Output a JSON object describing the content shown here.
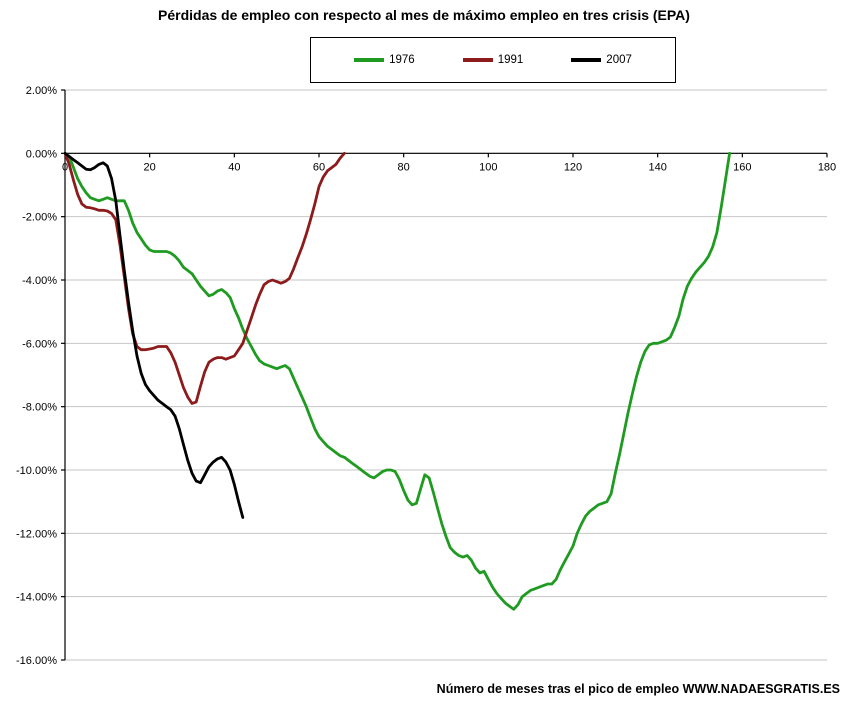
{
  "chart_data": {
    "type": "line",
    "title": "Pérdidas de empleo con respecto al mes de máximo empleo en tres crisis (EPA)",
    "xlabel": "Número de meses tras el pico de empleo WWW.NADAESGRATIS.ES",
    "ylabel": "",
    "xlim": [
      0,
      180
    ],
    "ylim": [
      -16,
      2
    ],
    "xticks": [
      0,
      20,
      40,
      60,
      80,
      100,
      120,
      140,
      160,
      180
    ],
    "yticks": [
      2,
      0,
      -2,
      -4,
      -6,
      -8,
      -10,
      -12,
      -14,
      -16
    ],
    "ytick_format": "0.00%",
    "grid": "horizontal",
    "gridline_color": "#c6c6c6",
    "axis_color": "#000000",
    "legend_position": "top-center",
    "series": [
      {
        "name": "1976",
        "color": "#1e9b20",
        "points": [
          [
            0,
            0
          ],
          [
            1,
            -0.1
          ],
          [
            2,
            -0.45
          ],
          [
            3,
            -0.8
          ],
          [
            4,
            -1.05
          ],
          [
            5,
            -1.25
          ],
          [
            6,
            -1.4
          ],
          [
            7,
            -1.45
          ],
          [
            8,
            -1.5
          ],
          [
            9,
            -1.45
          ],
          [
            10,
            -1.4
          ],
          [
            11,
            -1.45
          ],
          [
            12,
            -1.5
          ],
          [
            13,
            -1.5
          ],
          [
            14,
            -1.5
          ],
          [
            15,
            -1.8
          ],
          [
            16,
            -2.2
          ],
          [
            17,
            -2.5
          ],
          [
            18,
            -2.7
          ],
          [
            19,
            -2.9
          ],
          [
            20,
            -3.05
          ],
          [
            21,
            -3.1
          ],
          [
            22,
            -3.1
          ],
          [
            23,
            -3.1
          ],
          [
            24,
            -3.1
          ],
          [
            25,
            -3.15
          ],
          [
            26,
            -3.25
          ],
          [
            27,
            -3.4
          ],
          [
            28,
            -3.6
          ],
          [
            29,
            -3.7
          ],
          [
            30,
            -3.8
          ],
          [
            31,
            -4.0
          ],
          [
            32,
            -4.2
          ],
          [
            33,
            -4.35
          ],
          [
            34,
            -4.5
          ],
          [
            35,
            -4.45
          ],
          [
            36,
            -4.35
          ],
          [
            37,
            -4.3
          ],
          [
            38,
            -4.4
          ],
          [
            39,
            -4.55
          ],
          [
            40,
            -4.9
          ],
          [
            41,
            -5.2
          ],
          [
            42,
            -5.55
          ],
          [
            43,
            -5.85
          ],
          [
            44,
            -6.1
          ],
          [
            45,
            -6.35
          ],
          [
            46,
            -6.55
          ],
          [
            47,
            -6.65
          ],
          [
            48,
            -6.7
          ],
          [
            49,
            -6.75
          ],
          [
            50,
            -6.8
          ],
          [
            51,
            -6.75
          ],
          [
            52,
            -6.7
          ],
          [
            53,
            -6.8
          ],
          [
            54,
            -7.1
          ],
          [
            55,
            -7.4
          ],
          [
            56,
            -7.7
          ],
          [
            57,
            -8.0
          ],
          [
            58,
            -8.35
          ],
          [
            59,
            -8.7
          ],
          [
            60,
            -8.95
          ],
          [
            61,
            -9.1
          ],
          [
            62,
            -9.25
          ],
          [
            63,
            -9.35
          ],
          [
            64,
            -9.45
          ],
          [
            65,
            -9.55
          ],
          [
            66,
            -9.6
          ],
          [
            67,
            -9.7
          ],
          [
            68,
            -9.8
          ],
          [
            69,
            -9.9
          ],
          [
            70,
            -10.0
          ],
          [
            71,
            -10.1
          ],
          [
            72,
            -10.2
          ],
          [
            73,
            -10.25
          ],
          [
            74,
            -10.15
          ],
          [
            75,
            -10.05
          ],
          [
            76,
            -10.0
          ],
          [
            77,
            -10.0
          ],
          [
            78,
            -10.05
          ],
          [
            79,
            -10.3
          ],
          [
            80,
            -10.65
          ],
          [
            81,
            -10.95
          ],
          [
            82,
            -11.1
          ],
          [
            83,
            -11.05
          ],
          [
            84,
            -10.6
          ],
          [
            85,
            -10.15
          ],
          [
            86,
            -10.25
          ],
          [
            87,
            -10.7
          ],
          [
            88,
            -11.2
          ],
          [
            89,
            -11.7
          ],
          [
            90,
            -12.1
          ],
          [
            91,
            -12.45
          ],
          [
            92,
            -12.6
          ],
          [
            93,
            -12.7
          ],
          [
            94,
            -12.75
          ],
          [
            95,
            -12.7
          ],
          [
            96,
            -12.85
          ],
          [
            97,
            -13.1
          ],
          [
            98,
            -13.25
          ],
          [
            99,
            -13.2
          ],
          [
            100,
            -13.45
          ],
          [
            101,
            -13.7
          ],
          [
            102,
            -13.9
          ],
          [
            103,
            -14.05
          ],
          [
            104,
            -14.2
          ],
          [
            105,
            -14.3
          ],
          [
            106,
            -14.4
          ],
          [
            107,
            -14.25
          ],
          [
            108,
            -14.0
          ],
          [
            109,
            -13.9
          ],
          [
            110,
            -13.8
          ],
          [
            111,
            -13.75
          ],
          [
            112,
            -13.7
          ],
          [
            113,
            -13.65
          ],
          [
            114,
            -13.6
          ],
          [
            115,
            -13.6
          ],
          [
            116,
            -13.45
          ],
          [
            117,
            -13.15
          ],
          [
            118,
            -12.9
          ],
          [
            119,
            -12.65
          ],
          [
            120,
            -12.4
          ],
          [
            121,
            -12.0
          ],
          [
            122,
            -11.7
          ],
          [
            123,
            -11.45
          ],
          [
            124,
            -11.3
          ],
          [
            125,
            -11.2
          ],
          [
            126,
            -11.1
          ],
          [
            127,
            -11.05
          ],
          [
            128,
            -11.0
          ],
          [
            129,
            -10.75
          ],
          [
            130,
            -10.1
          ],
          [
            131,
            -9.5
          ],
          [
            132,
            -8.85
          ],
          [
            133,
            -8.2
          ],
          [
            134,
            -7.6
          ],
          [
            135,
            -7.05
          ],
          [
            136,
            -6.6
          ],
          [
            137,
            -6.25
          ],
          [
            138,
            -6.05
          ],
          [
            139,
            -6.0
          ],
          [
            140,
            -6.0
          ],
          [
            141,
            -5.95
          ],
          [
            142,
            -5.9
          ],
          [
            143,
            -5.8
          ],
          [
            144,
            -5.5
          ],
          [
            145,
            -5.15
          ],
          [
            146,
            -4.6
          ],
          [
            147,
            -4.2
          ],
          [
            148,
            -3.95
          ],
          [
            149,
            -3.75
          ],
          [
            150,
            -3.6
          ],
          [
            151,
            -3.45
          ],
          [
            152,
            -3.25
          ],
          [
            153,
            -2.95
          ],
          [
            154,
            -2.5
          ],
          [
            155,
            -1.7
          ],
          [
            156,
            -0.85
          ],
          [
            157,
            0.0
          ]
        ]
      },
      {
        "name": "1991",
        "color": "#8e1b1b",
        "points": [
          [
            0,
            0
          ],
          [
            1,
            -0.35
          ],
          [
            2,
            -0.85
          ],
          [
            3,
            -1.3
          ],
          [
            4,
            -1.6
          ],
          [
            5,
            -1.7
          ],
          [
            6,
            -1.72
          ],
          [
            7,
            -1.75
          ],
          [
            8,
            -1.8
          ],
          [
            9,
            -1.8
          ],
          [
            10,
            -1.82
          ],
          [
            11,
            -1.9
          ],
          [
            12,
            -2.1
          ],
          [
            13,
            -2.9
          ],
          [
            14,
            -3.9
          ],
          [
            15,
            -4.9
          ],
          [
            16,
            -5.7
          ],
          [
            17,
            -6.1
          ],
          [
            18,
            -6.2
          ],
          [
            19,
            -6.2
          ],
          [
            20,
            -6.18
          ],
          [
            21,
            -6.15
          ],
          [
            22,
            -6.1
          ],
          [
            23,
            -6.1
          ],
          [
            24,
            -6.1
          ],
          [
            25,
            -6.3
          ],
          [
            26,
            -6.6
          ],
          [
            27,
            -7.0
          ],
          [
            28,
            -7.4
          ],
          [
            29,
            -7.7
          ],
          [
            30,
            -7.9
          ],
          [
            31,
            -7.85
          ],
          [
            32,
            -7.35
          ],
          [
            33,
            -6.9
          ],
          [
            34,
            -6.6
          ],
          [
            35,
            -6.5
          ],
          [
            36,
            -6.45
          ],
          [
            37,
            -6.45
          ],
          [
            38,
            -6.5
          ],
          [
            39,
            -6.45
          ],
          [
            40,
            -6.4
          ],
          [
            41,
            -6.2
          ],
          [
            42,
            -6.0
          ],
          [
            43,
            -5.6
          ],
          [
            44,
            -5.2
          ],
          [
            45,
            -4.8
          ],
          [
            46,
            -4.45
          ],
          [
            47,
            -4.15
          ],
          [
            48,
            -4.05
          ],
          [
            49,
            -4.0
          ],
          [
            50,
            -4.05
          ],
          [
            51,
            -4.1
          ],
          [
            52,
            -4.05
          ],
          [
            53,
            -3.95
          ],
          [
            54,
            -3.65
          ],
          [
            55,
            -3.3
          ],
          [
            56,
            -2.95
          ],
          [
            57,
            -2.55
          ],
          [
            58,
            -2.1
          ],
          [
            59,
            -1.6
          ],
          [
            60,
            -1.05
          ],
          [
            61,
            -0.75
          ],
          [
            62,
            -0.55
          ],
          [
            63,
            -0.45
          ],
          [
            64,
            -0.35
          ],
          [
            65,
            -0.15
          ],
          [
            66,
            0.0
          ]
        ]
      },
      {
        "name": "2007",
        "color": "#000000",
        "points": [
          [
            0,
            0
          ],
          [
            1,
            -0.1
          ],
          [
            2,
            -0.2
          ],
          [
            3,
            -0.3
          ],
          [
            4,
            -0.4
          ],
          [
            5,
            -0.5
          ],
          [
            6,
            -0.52
          ],
          [
            7,
            -0.45
          ],
          [
            8,
            -0.35
          ],
          [
            9,
            -0.3
          ],
          [
            10,
            -0.4
          ],
          [
            11,
            -0.8
          ],
          [
            12,
            -1.5
          ],
          [
            13,
            -2.6
          ],
          [
            14,
            -3.7
          ],
          [
            15,
            -4.7
          ],
          [
            16,
            -5.6
          ],
          [
            17,
            -6.4
          ],
          [
            18,
            -6.95
          ],
          [
            19,
            -7.3
          ],
          [
            20,
            -7.5
          ],
          [
            21,
            -7.65
          ],
          [
            22,
            -7.8
          ],
          [
            23,
            -7.9
          ],
          [
            24,
            -8.0
          ],
          [
            25,
            -8.1
          ],
          [
            26,
            -8.3
          ],
          [
            27,
            -8.7
          ],
          [
            28,
            -9.2
          ],
          [
            29,
            -9.7
          ],
          [
            30,
            -10.1
          ],
          [
            31,
            -10.35
          ],
          [
            32,
            -10.4
          ],
          [
            33,
            -10.15
          ],
          [
            34,
            -9.9
          ],
          [
            35,
            -9.75
          ],
          [
            36,
            -9.65
          ],
          [
            37,
            -9.6
          ],
          [
            38,
            -9.75
          ],
          [
            39,
            -10.0
          ],
          [
            40,
            -10.45
          ],
          [
            41,
            -11.0
          ],
          [
            42,
            -11.5
          ]
        ]
      }
    ]
  }
}
